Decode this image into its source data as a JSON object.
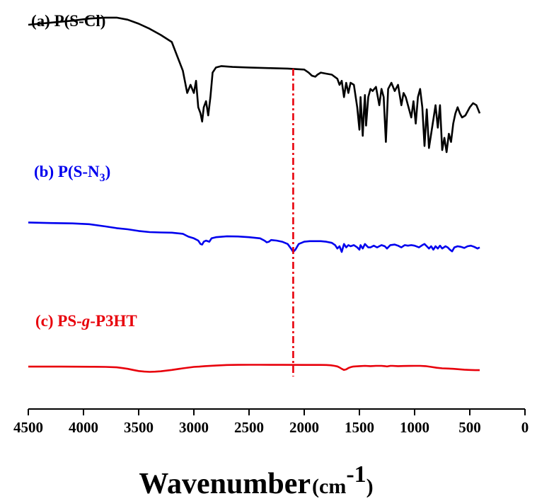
{
  "chart_data": {
    "type": "line",
    "title": "",
    "xlabel": {
      "main": "Wavenumber",
      "unit_open": "(cm",
      "unit_sup": "-1",
      "unit_close": ")"
    },
    "ylabel": "",
    "xlim": [
      4500,
      0
    ],
    "x_ticks": [
      4500,
      4000,
      3500,
      3000,
      2500,
      2000,
      1500,
      1000,
      500,
      0
    ],
    "grid": false,
    "reference_line": {
      "x": 2100,
      "color": "#e8000b",
      "style": "dash-dot"
    },
    "series": [
      {
        "name_parts": {
          "prefix": "(a) P(S-Cl)",
          "sub": "",
          "italic": "",
          "suffix": ""
        },
        "color": "#000000",
        "x": [
          4500,
          4300,
          4100,
          3950,
          3800,
          3700,
          3600,
          3500,
          3400,
          3300,
          3200,
          3150,
          3100,
          3060,
          3030,
          3000,
          2980,
          2960,
          2940,
          2925,
          2910,
          2890,
          2870,
          2850,
          2830,
          2800,
          2750,
          2650,
          2500,
          2300,
          2150,
          2000,
          1960,
          1930,
          1900,
          1880,
          1850,
          1800,
          1750,
          1700,
          1680,
          1660,
          1640,
          1620,
          1600,
          1580,
          1550,
          1520,
          1500,
          1490,
          1470,
          1460,
          1450,
          1440,
          1420,
          1400,
          1380,
          1350,
          1320,
          1300,
          1280,
          1260,
          1240,
          1210,
          1180,
          1150,
          1120,
          1100,
          1080,
          1050,
          1030,
          1010,
          990,
          970,
          950,
          930,
          910,
          890,
          870,
          850,
          830,
          810,
          790,
          770,
          750,
          730,
          710,
          690,
          670,
          650,
          630,
          610,
          590,
          570,
          540,
          500,
          470,
          440,
          410
        ],
        "y": [
          0.955,
          0.965,
          0.975,
          0.985,
          0.99,
          0.99,
          0.98,
          0.96,
          0.935,
          0.905,
          0.87,
          0.8,
          0.73,
          0.62,
          0.66,
          0.62,
          0.68,
          0.55,
          0.52,
          0.48,
          0.55,
          0.58,
          0.51,
          0.6,
          0.72,
          0.745,
          0.752,
          0.748,
          0.745,
          0.742,
          0.74,
          0.735,
          0.72,
          0.705,
          0.7,
          0.71,
          0.72,
          0.715,
          0.71,
          0.69,
          0.66,
          0.68,
          0.6,
          0.67,
          0.62,
          0.67,
          0.66,
          0.55,
          0.44,
          0.6,
          0.41,
          0.52,
          0.61,
          0.46,
          0.6,
          0.64,
          0.63,
          0.65,
          0.56,
          0.64,
          0.6,
          0.38,
          0.64,
          0.67,
          0.63,
          0.66,
          0.56,
          0.62,
          0.6,
          0.54,
          0.5,
          0.58,
          0.47,
          0.6,
          0.64,
          0.55,
          0.36,
          0.54,
          0.35,
          0.42,
          0.49,
          0.56,
          0.45,
          0.56,
          0.34,
          0.4,
          0.33,
          0.42,
          0.38,
          0.47,
          0.52,
          0.55,
          0.52,
          0.5,
          0.51,
          0.55,
          0.57,
          0.56,
          0.52
        ]
      },
      {
        "name_parts": {
          "prefix": "(b) P(S-N",
          "sub": "3",
          "italic": "",
          "suffix": ")"
        },
        "color": "#0000ee",
        "x": [
          4500,
          4300,
          4100,
          3950,
          3800,
          3700,
          3600,
          3500,
          3400,
          3300,
          3200,
          3100,
          3050,
          3000,
          2960,
          2940,
          2925,
          2910,
          2890,
          2860,
          2840,
          2800,
          2700,
          2600,
          2500,
          2400,
          2360,
          2340,
          2320,
          2300,
          2250,
          2200,
          2150,
          2120,
          2100,
          2080,
          2050,
          2000,
          1950,
          1900,
          1850,
          1800,
          1750,
          1720,
          1700,
          1680,
          1660,
          1640,
          1620,
          1600,
          1580,
          1550,
          1520,
          1500,
          1490,
          1470,
          1450,
          1420,
          1400,
          1370,
          1340,
          1300,
          1270,
          1250,
          1220,
          1180,
          1150,
          1120,
          1090,
          1060,
          1030,
          1000,
          960,
          930,
          910,
          890,
          870,
          850,
          830,
          810,
          790,
          770,
          750,
          720,
          700,
          680,
          660,
          640,
          610,
          580,
          550,
          520,
          490,
          460,
          430,
          410
        ],
        "y": [
          0.66,
          0.655,
          0.652,
          0.645,
          0.625,
          0.61,
          0.6,
          0.585,
          0.575,
          0.572,
          0.57,
          0.56,
          0.535,
          0.52,
          0.5,
          0.47,
          0.465,
          0.49,
          0.5,
          0.49,
          0.52,
          0.53,
          0.538,
          0.536,
          0.53,
          0.52,
          0.5,
          0.485,
          0.49,
          0.505,
          0.5,
          0.49,
          0.47,
          0.43,
          0.4,
          0.42,
          0.47,
          0.49,
          0.495,
          0.495,
          0.495,
          0.49,
          0.48,
          0.46,
          0.43,
          0.45,
          0.4,
          0.47,
          0.44,
          0.46,
          0.45,
          0.46,
          0.44,
          0.42,
          0.46,
          0.43,
          0.47,
          0.44,
          0.44,
          0.455,
          0.44,
          0.46,
          0.45,
          0.43,
          0.46,
          0.465,
          0.455,
          0.44,
          0.46,
          0.455,
          0.46,
          0.455,
          0.44,
          0.46,
          0.47,
          0.45,
          0.43,
          0.45,
          0.42,
          0.45,
          0.43,
          0.455,
          0.43,
          0.45,
          0.44,
          0.42,
          0.405,
          0.44,
          0.45,
          0.445,
          0.435,
          0.45,
          0.455,
          0.445,
          0.43,
          0.44
        ]
      },
      {
        "name_parts": {
          "prefix": "(c) PS-",
          "sub": "",
          "italic": "g",
          "suffix": "-P3HT"
        },
        "color": "#e8000b",
        "x": [
          4500,
          4200,
          3900,
          3800,
          3700,
          3650,
          3600,
          3550,
          3500,
          3450,
          3400,
          3350,
          3300,
          3200,
          3100,
          3000,
          2950,
          2900,
          2800,
          2700,
          2600,
          2500,
          2400,
          2200,
          2000,
          1900,
          1850,
          1800,
          1760,
          1730,
          1700,
          1680,
          1660,
          1640,
          1620,
          1600,
          1580,
          1560,
          1540,
          1500,
          1450,
          1400,
          1350,
          1300,
          1270,
          1250,
          1220,
          1200,
          1150,
          1100,
          1050,
          1000,
          950,
          900,
          850,
          800,
          750,
          700,
          650,
          600,
          550,
          500,
          450,
          410
        ],
        "y": [
          0.18,
          0.18,
          0.178,
          0.175,
          0.168,
          0.155,
          0.14,
          0.12,
          0.1,
          0.09,
          0.085,
          0.088,
          0.095,
          0.12,
          0.15,
          0.175,
          0.18,
          0.19,
          0.2,
          0.21,
          0.213,
          0.214,
          0.214,
          0.213,
          0.212,
          0.212,
          0.212,
          0.21,
          0.205,
          0.196,
          0.185,
          0.165,
          0.14,
          0.12,
          0.13,
          0.155,
          0.17,
          0.18,
          0.185,
          0.19,
          0.195,
          0.19,
          0.195,
          0.195,
          0.19,
          0.183,
          0.195,
          0.195,
          0.19,
          0.192,
          0.193,
          0.195,
          0.195,
          0.19,
          0.175,
          0.16,
          0.15,
          0.145,
          0.14,
          0.132,
          0.125,
          0.12,
          0.115,
          0.115
        ]
      }
    ]
  }
}
